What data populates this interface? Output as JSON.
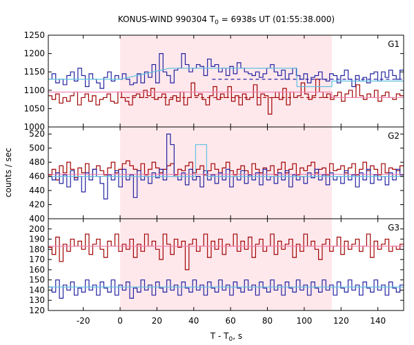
{
  "chart_data": {
    "type": "line",
    "title": {
      "prefix": "KONUS-WIND 990304 T",
      "sub": "0",
      "suffix": " = 6938s UT (01:55:38.000)"
    },
    "xlabel": {
      "prefix": "T - T",
      "sub": "0",
      "suffix": ", s"
    },
    "ylabel": "counts / sec",
    "xlim": [
      -39,
      154
    ],
    "xticks": [
      -20,
      0,
      20,
      40,
      60,
      80,
      100,
      120,
      140
    ],
    "shaded_interval": [
      0,
      115
    ],
    "colors": {
      "red": "#a00000",
      "blue": "#2020a0",
      "pink": "#f080b0",
      "cyan": "#60c0e0",
      "shade": "#ffe8ec"
    },
    "panels": [
      {
        "label": "G1",
        "ylim": [
          1000,
          1250
        ],
        "yticks": [
          1000,
          1050,
          1100,
          1150,
          1200,
          1250
        ],
        "series": [
          {
            "color": "blue",
            "values": [
              1130,
              1145,
              1120,
              1130,
              1115,
              1140,
              1150,
              1125,
              1160,
              1140,
              1110,
              1145,
              1130,
              1120,
              1105,
              1135,
              1150,
              1125,
              1140,
              1130,
              1145,
              1130,
              1115,
              1120,
              1145,
              1120,
              1150,
              1135,
              1170,
              1120,
              1200,
              1150,
              1140,
              1120,
              1155,
              1160,
              1200,
              1170,
              1150,
              1160,
              1170,
              1165,
              1140,
              1185,
              1165,
              1170,
              1150,
              1160,
              1140,
              1165,
              1145,
              1175,
              1160,
              1150,
              1145,
              1140,
              1150,
              1135,
              1145,
              1160,
              1170,
              1150,
              1140,
              1155,
              1130,
              1145,
              1160,
              1140,
              1130,
              1145,
              1120,
              1135,
              1140,
              1150,
              1130,
              1125,
              1145,
              1140,
              1120,
              1140,
              1155,
              1130,
              1110,
              1140,
              1125,
              1135,
              1120,
              1145,
              1150,
              1125,
              1150,
              1135,
              1155,
              1140,
              1130,
              1155
            ]
          },
          {
            "color": "red",
            "values": [
              1085,
              1075,
              1090,
              1065,
              1080,
              1070,
              1085,
              1095,
              1060,
              1080,
              1090,
              1070,
              1085,
              1060,
              1075,
              1080,
              1090,
              1070,
              1065,
              1095,
              1080,
              1070,
              1060,
              1085,
              1090,
              1080,
              1100,
              1085,
              1105,
              1075,
              1080,
              1090,
              1060,
              1075,
              1085,
              1070,
              1095,
              1060,
              1080,
              1120,
              1085,
              1090,
              1075,
              1060,
              1085,
              1110,
              1075,
              1090,
              1080,
              1110,
              1070,
              1085,
              1060,
              1090,
              1075,
              1080,
              1115,
              1060,
              1090,
              1085,
              1035,
              1080,
              1095,
              1075,
              1105,
              1060,
              1095,
              1080,
              1085,
              1120,
              1090,
              1075,
              1085,
              1130,
              1095,
              1080,
              1090,
              1075,
              1085,
              1095,
              1070,
              1090,
              1100,
              1080,
              1115,
              1085,
              1075,
              1090,
              1080,
              1100,
              1070,
              1085,
              1095,
              1080,
              1075,
              1090,
              1085
            ]
          },
          {
            "color": "cyan",
            "dashed": false,
            "steps": [
              [
                -39,
                1130
              ],
              [
                0,
                1130
              ],
              [
                27,
                1160
              ],
              [
                96,
                1160
              ],
              [
                96,
                1110
              ],
              [
                115,
                1110
              ],
              [
                115,
                1125
              ],
              [
                154,
                1125
              ]
            ]
          },
          {
            "color": "pink",
            "dashed": false,
            "steps": [
              [
                -39,
                1095
              ],
              [
                0,
                1095
              ],
              [
                115,
                1095
              ],
              [
                115,
                1080
              ],
              [
                154,
                1080
              ]
            ]
          },
          {
            "color": "blue",
            "dashed": true,
            "steps": [
              [
                50,
                1130
              ],
              [
                154,
                1130
              ]
            ]
          },
          {
            "color": "red",
            "dashed": true,
            "steps": [
              [
                0,
                1080
              ],
              [
                115,
                1080
              ]
            ]
          }
        ]
      },
      {
        "label": "G2",
        "ylim": [
          400,
          530
        ],
        "yticks": [
          400,
          420,
          440,
          460,
          480,
          500,
          520
        ],
        "series": [
          {
            "color": "red",
            "values": [
              462,
              470,
              455,
              475,
              465,
              480,
              470,
              458,
              472,
              465,
              478,
              460,
              470,
              475,
              468,
              462,
              472,
              480,
              465,
              470,
              478,
              482,
              475,
              470,
              468,
              478,
              462,
              470,
              480,
              472,
              465,
              470,
              475,
              478,
              462,
              470,
              468,
              475,
              480,
              465,
              470,
              475,
              462,
              468,
              478,
              470,
              465,
              472,
              480,
              468,
              462,
              470,
              475,
              468,
              460,
              478,
              470,
              465,
              472,
              468,
              475,
              462,
              470,
              480,
              465,
              470,
              478,
              462,
              472,
              468,
              475,
              480,
              465,
              470,
              472,
              462,
              478,
              468,
              470,
              475,
              465,
              472,
              478,
              462,
              470,
              480,
              468,
              475,
              470,
              462,
              478,
              465,
              472,
              470,
              468,
              475
            ]
          },
          {
            "color": "blue",
            "values": [
              460,
              455,
              465,
              450,
              462,
              445,
              468,
              455,
              460,
              438,
              465,
              455,
              470,
              460,
              450,
              428,
              462,
              455,
              468,
              445,
              470,
              455,
              462,
              430,
              468,
              455,
              460,
              450,
              465,
              458,
              470,
              455,
              520,
              505,
              460,
              455,
              465,
              448,
              470,
              455,
              460,
              445,
              468,
              455,
              462,
              450,
              465,
              455,
              470,
              445,
              460,
              455,
              468,
              450,
              462,
              455,
              465,
              448,
              470,
              455,
              460,
              450,
              465,
              455,
              468,
              445,
              462,
              455,
              460,
              450,
              465,
              458,
              470,
              455,
              462,
              448,
              465,
              455,
              460,
              450,
              468,
              455,
              462,
              445,
              465,
              455,
              470,
              450,
              462,
              455,
              460,
              448,
              465,
              455,
              470,
              462
            ]
          },
          {
            "color": "cyan",
            "dashed": false,
            "steps": [
              [
                -39,
                460
              ],
              [
                41,
                460
              ],
              [
                41,
                505
              ],
              [
                47,
                505
              ],
              [
                47,
                460
              ],
              [
                154,
                460
              ]
            ]
          },
          {
            "color": "pink",
            "dashed": false,
            "steps": [
              [
                -39,
                463
              ],
              [
                154,
                463
              ]
            ]
          }
        ]
      },
      {
        "label": "G3",
        "ylim": [
          120,
          210
        ],
        "yticks": [
          120,
          130,
          140,
          150,
          160,
          170,
          180,
          190,
          200
        ],
        "series": [
          {
            "color": "red",
            "values": [
              182,
              175,
              192,
              168,
              185,
              178,
              190,
              183,
              188,
              180,
              195,
              175,
              185,
              190,
              180,
              172,
              188,
              183,
              195,
              178,
              185,
              180,
              190,
              172,
              185,
              178,
              195,
              183,
              188,
              180,
              170,
              195,
              185,
              175,
              190,
              182,
              188,
              160,
              185,
              190,
              178,
              183,
              195,
              172,
              188,
              180,
              190,
              175,
              185,
              183,
              195,
              178,
              188,
              180,
              192,
              172,
              185,
              190,
              178,
              183,
              195,
              175,
              188,
              180,
              185,
              190,
              172,
              185,
              178,
              195,
              183,
              188,
              180,
              170,
              185,
              190,
              178,
              183,
              192,
              175,
              188,
              180,
              185,
              190,
              178,
              183,
              195,
              172,
              188,
              180,
              185,
              190,
              178,
              183,
              180,
              185
            ]
          },
          {
            "color": "blue",
            "values": [
              143,
              138,
              150,
              132,
              145,
              140,
              148,
              135,
              142,
              138,
              150,
              140,
              145,
              135,
              148,
              142,
              138,
              150,
              135,
              145,
              140,
              148,
              132,
              142,
              138,
              150,
              140,
              145,
              135,
              148,
              142,
              138,
              150,
              140,
              145,
              135,
              148,
              142,
              138,
              150,
              140,
              145,
              135,
              148,
              142,
              138,
              150,
              140,
              145,
              135,
              148,
              142,
              138,
              150,
              140,
              145,
              135,
              148,
              142,
              138,
              150,
              140,
              145,
              135,
              148,
              142,
              138,
              150,
              140,
              145,
              135,
              148,
              142,
              138,
              150,
              140,
              145,
              135,
              148,
              142,
              138,
              150,
              140,
              145,
              135,
              148,
              142,
              138,
              150,
              140,
              145,
              135,
              148,
              142,
              138,
              145
            ]
          },
          {
            "color": "cyan",
            "dashed": false,
            "steps": [
              [
                -39,
                143
              ],
              [
                154,
                143
              ]
            ]
          },
          {
            "color": "pink",
            "dashed": false,
            "steps": [
              [
                -39,
                183
              ],
              [
                154,
                183
              ]
            ]
          }
        ]
      }
    ]
  }
}
